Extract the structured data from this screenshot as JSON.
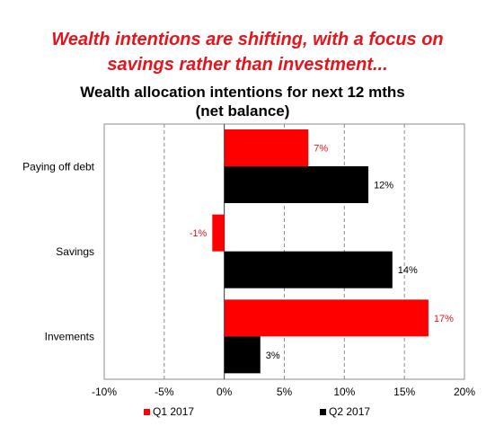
{
  "headline": {
    "line1": "Wealth intentions are shifting, with a focus on",
    "line2": "savings rather than investment..."
  },
  "chart_data": {
    "type": "bar",
    "orientation": "horizontal",
    "title": "Wealth allocation intentions for next 12 mths",
    "subtitle": "(net balance)",
    "categories": [
      "Paying off debt",
      "Savings",
      "Invements"
    ],
    "series": [
      {
        "name": "Q1 2017",
        "color": "#ff0000",
        "values": [
          7,
          -1,
          17
        ],
        "labels": [
          "7%",
          "-1%",
          "17%"
        ],
        "label_color": "#e8141b"
      },
      {
        "name": "Q2 2017",
        "color": "#000000",
        "values": [
          12,
          14,
          3
        ],
        "labels": [
          "12%",
          "14%",
          "3%"
        ],
        "label_color": "#000000"
      }
    ],
    "xlim": [
      -10,
      20
    ],
    "xticks": [
      -10,
      -5,
      0,
      5,
      10,
      15,
      20
    ],
    "xtick_labels": [
      "-10%",
      "-5%",
      "0%",
      "5%",
      "10%",
      "15%",
      "20%"
    ],
    "grid": "vertical-dashed",
    "legend_position": "bottom"
  }
}
